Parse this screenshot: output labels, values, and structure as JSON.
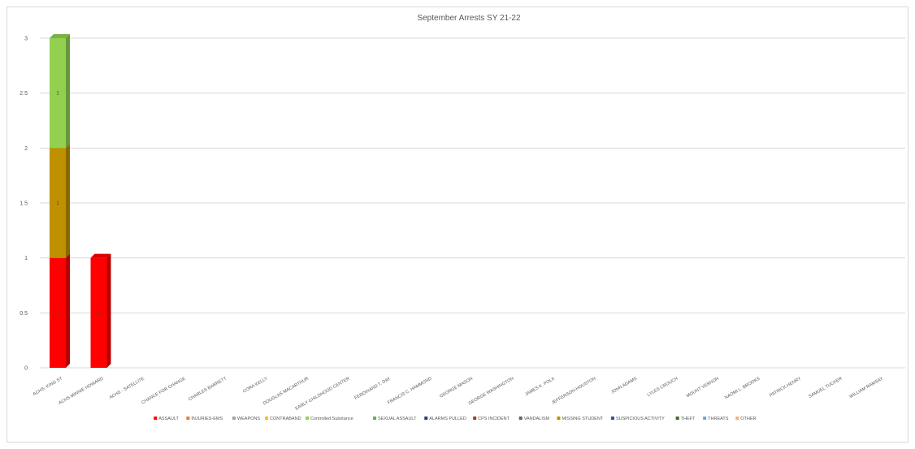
{
  "chart_data": {
    "type": "bar",
    "stacked": true,
    "three_d": true,
    "title": "September Arrests SY 21-22",
    "xlabel": "",
    "ylabel": "",
    "ylim": [
      0,
      3
    ],
    "yticks": [
      "0",
      "0.5",
      "1",
      "1.5",
      "2",
      "2.5",
      "3"
    ],
    "grid": true,
    "legend_position": "bottom",
    "categories": [
      "ACHS- KING ST",
      "ACHS MINNIE HOWARD",
      "ACHS - SATELLITE",
      "CHANCE FOR CHANGE",
      "CHARLES BARRETT",
      "CORA KELLY",
      "DOUGLAS MACARTHUR",
      "EARLY CHILDHOOD CENTER",
      "FERDINAND T. DAY",
      "FRANCIS C. HAMMOND",
      "GEORGE MASON",
      "GEORGE WASHINGTON",
      "JAMES K. POLK",
      "JEFFERSON-HOUSTON",
      "JOHN ADAMS",
      "LYLES CROUCH",
      "MOUNT VERNON",
      "NAOMI L. BROOKS",
      "PATRICK HENRY",
      "SAMUEL TUCKER",
      "WILLIAM RAMSAY"
    ],
    "series": [
      {
        "name": "ASSAULT",
        "color": "#ff0000",
        "values": [
          1,
          1,
          0,
          0,
          0,
          0,
          0,
          0,
          0,
          0,
          0,
          0,
          0,
          0,
          0,
          0,
          0,
          0,
          0,
          0,
          0
        ]
      },
      {
        "name": "INJURIES-EMS",
        "color": "#ed7d31",
        "values": [
          0,
          0,
          0,
          0,
          0,
          0,
          0,
          0,
          0,
          0,
          0,
          0,
          0,
          0,
          0,
          0,
          0,
          0,
          0,
          0,
          0
        ]
      },
      {
        "name": "WEAPONS",
        "color": "#a5a5a5",
        "values": [
          0,
          0,
          0,
          0,
          0,
          0,
          0,
          0,
          0,
          0,
          0,
          0,
          0,
          0,
          0,
          0,
          0,
          0,
          0,
          0,
          0
        ]
      },
      {
        "name": "CONTRABAND",
        "color": "#ffc000",
        "values": [
          0,
          0,
          0,
          0,
          0,
          0,
          0,
          0,
          0,
          0,
          0,
          0,
          0,
          0,
          0,
          0,
          0,
          0,
          0,
          0,
          0
        ]
      },
      {
        "name": "Controlled Substance",
        "color": "#92d050",
        "values": [
          0,
          0,
          0,
          0,
          0,
          0,
          0,
          0,
          0,
          0,
          0,
          0,
          0,
          0,
          0,
          0,
          0,
          0,
          0,
          0,
          0
        ]
      },
      {
        "name": "SEXUAL ASSAULT",
        "color": "#70ad47",
        "values": [
          0,
          0,
          0,
          0,
          0,
          0,
          0,
          0,
          0,
          0,
          0,
          0,
          0,
          0,
          0,
          0,
          0,
          0,
          0,
          0,
          0
        ]
      },
      {
        "name": "ALARMS PULLED",
        "color": "#264478",
        "values": [
          0,
          0,
          0,
          0,
          0,
          0,
          0,
          0,
          0,
          0,
          0,
          0,
          0,
          0,
          0,
          0,
          0,
          0,
          0,
          0,
          0
        ]
      },
      {
        "name": "CPS INCIDENT",
        "color": "#9e480e",
        "values": [
          0,
          0,
          0,
          0,
          0,
          0,
          0,
          0,
          0,
          0,
          0,
          0,
          0,
          0,
          0,
          0,
          0,
          0,
          0,
          0,
          0
        ]
      },
      {
        "name": "VANDALISM",
        "color": "#636363",
        "values": [
          0,
          0,
          0,
          0,
          0,
          0,
          0,
          0,
          0,
          0,
          0,
          0,
          0,
          0,
          0,
          0,
          0,
          0,
          0,
          0,
          0
        ]
      },
      {
        "name": "MISSING STUDENT",
        "color": "#bf9000",
        "values": [
          1,
          0,
          0,
          0,
          0,
          0,
          0,
          0,
          0,
          0,
          0,
          0,
          0,
          0,
          0,
          0,
          0,
          0,
          0,
          0,
          0
        ]
      },
      {
        "name": "SUSPICIOUS ACTIVITY",
        "color": "#2f5597",
        "values": [
          0,
          0,
          0,
          0,
          0,
          0,
          0,
          0,
          0,
          0,
          0,
          0,
          0,
          0,
          0,
          0,
          0,
          0,
          0,
          0,
          0
        ]
      },
      {
        "name": "THEFT",
        "color": "#43682b",
        "values": [
          0,
          0,
          0,
          0,
          0,
          0,
          0,
          0,
          0,
          0,
          0,
          0,
          0,
          0,
          0,
          0,
          0,
          0,
          0,
          0,
          0
        ]
      },
      {
        "name": "THREATS",
        "color": "#6fa8dc",
        "values": [
          0,
          0,
          0,
          0,
          0,
          0,
          0,
          0,
          0,
          0,
          0,
          0,
          0,
          0,
          0,
          0,
          0,
          0,
          0,
          0,
          0
        ]
      },
      {
        "name": "OTHER",
        "color": "#f4b183",
        "values": [
          0,
          0,
          0,
          0,
          0,
          0,
          0,
          0,
          0,
          0,
          0,
          0,
          0,
          0,
          0,
          0,
          0,
          0,
          0,
          0,
          0
        ]
      },
      {
        "name": "",
        "color": "#92d050",
        "values": [
          1,
          0,
          0,
          0,
          0,
          0,
          0,
          0,
          0,
          0,
          0,
          0,
          0,
          0,
          0,
          0,
          0,
          0,
          0,
          0,
          0
        ]
      }
    ],
    "data_labels": [
      "1",
      "1",
      "1",
      "1"
    ]
  }
}
